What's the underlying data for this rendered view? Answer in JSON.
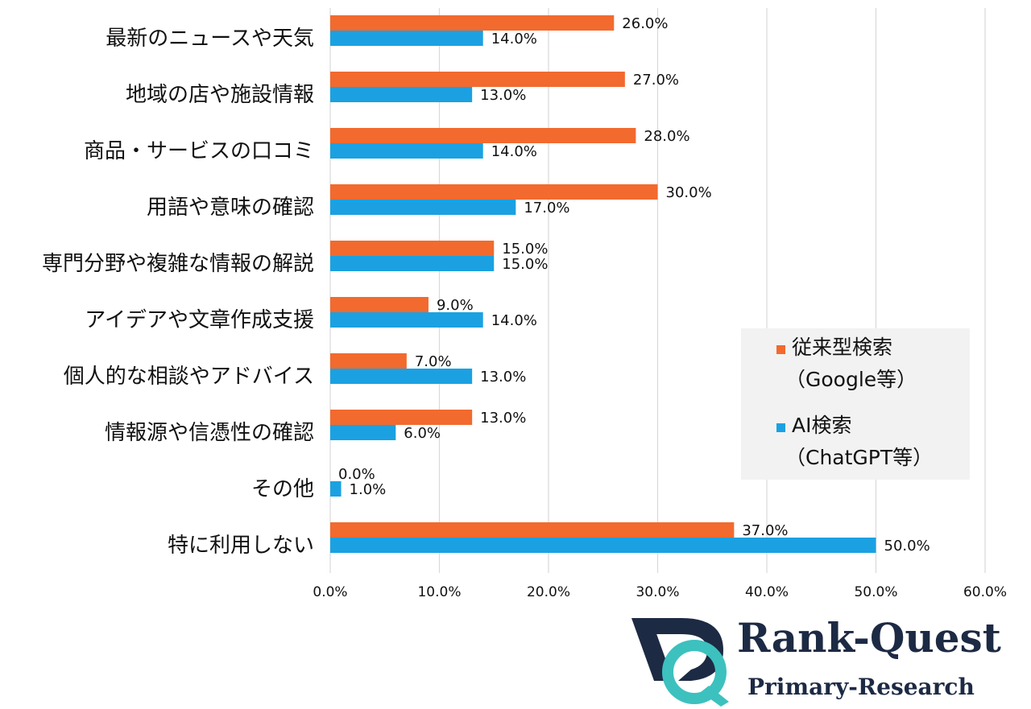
{
  "chart_data": {
    "type": "bar",
    "orientation": "horizontal",
    "categories": [
      "最新のニュースや天気",
      "地域の店や施設情報",
      "商品・サービスの口コミ",
      "用語や意味の確認",
      "専門分野や複雑な情報の解説",
      "アイデアや文章作成支援",
      "個人的な相談やアドバイス",
      "情報源や信憑性の確認",
      "その他",
      "特に利用しない"
    ],
    "series": [
      {
        "name_lines": [
          "従来型検索",
          "（Google等）"
        ],
        "color": "#f26a2e",
        "values": [
          26.0,
          27.0,
          28.0,
          30.0,
          15.0,
          9.0,
          7.0,
          13.0,
          0.0,
          37.0
        ]
      },
      {
        "name_lines": [
          "AI検索",
          "（ChatGPT等）"
        ],
        "color": "#1ba1e2",
        "values": [
          14.0,
          13.0,
          14.0,
          17.0,
          15.0,
          14.0,
          13.0,
          6.0,
          1.0,
          50.0
        ]
      }
    ],
    "xlim": [
      0,
      60
    ],
    "xticks": [
      "0.0%",
      "10.0%",
      "20.0%",
      "30.0%",
      "40.0%",
      "50.0%",
      "60.0%"
    ],
    "value_suffix": "%",
    "grid": true,
    "legend_position": "right"
  },
  "logo": {
    "name": "Rank-Quest",
    "tagline": "Primary-Research",
    "colors": {
      "navy": "#1d2a44",
      "teal": "#3cc1bf"
    }
  }
}
